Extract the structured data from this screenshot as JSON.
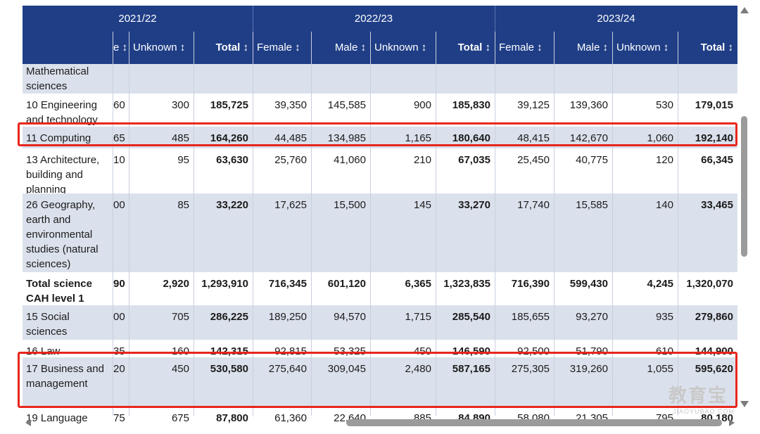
{
  "years": [
    "2021/22",
    "2022/23",
    "2023/24"
  ],
  "headers": [
    "e ↕",
    "Unknown ↕",
    "Total ↕",
    "Female ↕",
    "Male ↕",
    "Unknown ↕",
    "Total ↕",
    "Female ↕",
    "Male ↕",
    "Unknown ↕",
    "Total ↕"
  ],
  "rows": [
    {
      "subject": "Mathematical sciences",
      "values": [
        "",
        "",
        "",
        "",
        "",
        "",
        "",
        "",
        "",
        "",
        ""
      ],
      "bold": false
    },
    {
      "subject": "10 Engineering and technology",
      "values": [
        "60",
        "300",
        "185,725",
        "39,350",
        "145,585",
        "900",
        "185,830",
        "39,125",
        "139,360",
        "530",
        "179,015"
      ],
      "bold": false
    },
    {
      "subject": "11 Computing",
      "values": [
        "65",
        "485",
        "164,260",
        "44,485",
        "134,985",
        "1,165",
        "180,640",
        "48,415",
        "142,670",
        "1,060",
        "192,140"
      ],
      "bold": false
    },
    {
      "subject": "13 Architecture, building and planning",
      "values": [
        "10",
        "95",
        "63,630",
        "25,760",
        "41,060",
        "210",
        "67,035",
        "25,450",
        "40,775",
        "120",
        "66,345"
      ],
      "bold": false
    },
    {
      "subject": "26 Geography, earth and environmental studies (natural sciences)",
      "values": [
        "00",
        "85",
        "33,220",
        "17,625",
        "15,500",
        "145",
        "33,270",
        "17,740",
        "15,585",
        "140",
        "33,465"
      ],
      "bold": false
    },
    {
      "subject": "Total science CAH level 1",
      "values": [
        "90",
        "2,920",
        "1,293,910",
        "716,345",
        "601,120",
        "6,365",
        "1,323,835",
        "716,390",
        "599,430",
        "4,245",
        "1,320,070"
      ],
      "bold": true
    },
    {
      "subject": "15 Social sciences",
      "values": [
        "00",
        "705",
        "286,225",
        "189,250",
        "94,570",
        "1,715",
        "285,540",
        "185,655",
        "93,270",
        "935",
        "279,860"
      ],
      "bold": false
    },
    {
      "subject": "16 Law",
      "values": [
        "35",
        "160",
        "142,315",
        "92,815",
        "53,325",
        "450",
        "146,590",
        "92,500",
        "51,790",
        "610",
        "144,900"
      ],
      "bold": false
    },
    {
      "subject": "17 Business and management",
      "values": [
        "20",
        "450",
        "530,580",
        "275,640",
        "309,045",
        "2,480",
        "587,165",
        "275,305",
        "319,260",
        "1,055",
        "595,620"
      ],
      "bold": false
    },
    {
      "subject": "19 Language",
      "values": [
        "75",
        "675",
        "87,800",
        "61,360",
        "22,640",
        "885",
        "84,890",
        "58,080",
        "21,305",
        "795",
        "80,180"
      ],
      "bold": false
    }
  ],
  "watermark": {
    "main": "教育宝",
    "sub": "JIAOYUBAO.COM"
  }
}
